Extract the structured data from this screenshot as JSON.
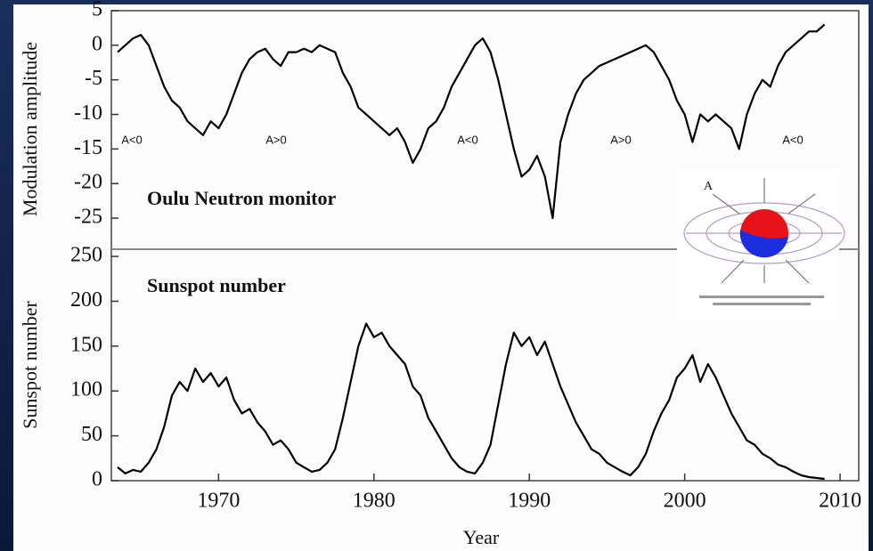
{
  "chart_data": [
    {
      "type": "line",
      "title": "Oulu Neutron monitor",
      "y_label": "Modulation amplitude",
      "color": "#000000",
      "annotations": [
        "A<0",
        "A>0",
        "A<0",
        "A>0",
        "A<0"
      ],
      "xlim": [
        1963.1,
        2011.2
      ],
      "ylim": [
        -29.5,
        5
      ],
      "yticks": [
        5,
        0,
        -5,
        -10,
        -15,
        -20,
        -25
      ],
      "x": [
        1963.5,
        1964,
        1964.5,
        1965,
        1965.5,
        1966,
        1966.5,
        1967,
        1967.5,
        1968,
        1968.5,
        1969,
        1969.5,
        1970,
        1970.5,
        1971,
        1971.5,
        1972,
        1972.5,
        1973,
        1973.5,
        1974,
        1974.5,
        1975,
        1975.5,
        1976,
        1976.5,
        1977,
        1977.5,
        1978,
        1978.5,
        1979,
        1979.5,
        1980,
        1980.5,
        1981,
        1981.5,
        1982,
        1982.5,
        1983,
        1983.5,
        1984,
        1984.5,
        1985,
        1985.5,
        1986,
        1986.5,
        1987,
        1987.5,
        1988,
        1988.5,
        1989,
        1989.5,
        1990,
        1990.5,
        1991,
        1991.5,
        1992,
        1992.5,
        1993,
        1993.5,
        1994,
        1994.5,
        1995,
        1995.5,
        1996,
        1996.5,
        1997,
        1997.5,
        1998,
        1998.5,
        1999,
        1999.5,
        2000,
        2000.5,
        2001,
        2001.5,
        2002,
        2002.5,
        2003,
        2003.5,
        2004,
        2004.5,
        2005,
        2005.5,
        2006,
        2006.5,
        2007,
        2007.5,
        2008,
        2008.5,
        2009
      ],
      "values": [
        -1,
        0,
        1,
        1.5,
        0,
        -3,
        -6,
        -8,
        -9,
        -11,
        -12,
        -13,
        -11,
        -12,
        -10,
        -7,
        -4,
        -2,
        -1,
        -0.5,
        -2,
        -3,
        -1,
        -1,
        -0.5,
        -1,
        0,
        -0.5,
        -1,
        -4,
        -6,
        -9,
        -10,
        -11,
        -12,
        -13,
        -12,
        -14,
        -17,
        -15,
        -12,
        -11,
        -9,
        -6,
        -4,
        -2,
        0,
        1,
        -1,
        -5,
        -10,
        -15,
        -19,
        -18,
        -16,
        -19,
        -25,
        -14,
        -10,
        -7,
        -5,
        -4,
        -3,
        -2.5,
        -2,
        -1.5,
        -1,
        -0.5,
        0,
        -1,
        -3,
        -5,
        -8,
        -10,
        -14,
        -10,
        -11,
        -10,
        -11,
        -12,
        -15,
        -10,
        -7,
        -5,
        -6,
        -3,
        -1,
        0,
        1,
        2,
        2,
        3
      ]
    },
    {
      "type": "line",
      "title": "Sunspot number",
      "y_label": "Sunspot number",
      "x_label": "Year",
      "color": "#000000",
      "xlim": [
        1963.1,
        2011.2
      ],
      "ylim": [
        0,
        258
      ],
      "yticks": [
        0,
        50,
        100,
        150,
        200,
        250
      ],
      "xticks": [
        1970,
        1980,
        1990,
        2000,
        2010
      ],
      "x": [
        1963.5,
        1964,
        1964.5,
        1965,
        1965.5,
        1966,
        1966.5,
        1967,
        1967.5,
        1968,
        1968.5,
        1969,
        1969.5,
        1970,
        1970.5,
        1971,
        1971.5,
        1972,
        1972.5,
        1973,
        1973.5,
        1974,
        1974.5,
        1975,
        1975.5,
        1976,
        1976.5,
        1977,
        1977.5,
        1978,
        1978.5,
        1979,
        1979.5,
        1980,
        1980.5,
        1981,
        1981.5,
        1982,
        1982.5,
        1983,
        1983.5,
        1984,
        1984.5,
        1985,
        1985.5,
        1986,
        1986.5,
        1987,
        1987.5,
        1988,
        1988.5,
        1989,
        1989.5,
        1990,
        1990.5,
        1991,
        1991.5,
        1992,
        1992.5,
        1993,
        1993.5,
        1994,
        1994.5,
        1995,
        1995.5,
        1996,
        1996.5,
        1997,
        1997.5,
        1998,
        1998.5,
        1999,
        1999.5,
        2000,
        2000.5,
        2001,
        2001.5,
        2002,
        2002.5,
        2003,
        2003.5,
        2004,
        2004.5,
        2005,
        2005.5,
        2006,
        2006.5,
        2007,
        2007.5,
        2008,
        2008.5,
        2009
      ],
      "values": [
        15,
        8,
        12,
        10,
        20,
        35,
        60,
        95,
        110,
        100,
        125,
        110,
        120,
        105,
        115,
        90,
        75,
        80,
        65,
        55,
        40,
        45,
        35,
        20,
        15,
        10,
        12,
        20,
        35,
        70,
        110,
        150,
        175,
        160,
        165,
        150,
        140,
        130,
        105,
        95,
        70,
        55,
        40,
        25,
        15,
        10,
        8,
        20,
        40,
        85,
        130,
        165,
        150,
        160,
        140,
        155,
        130,
        105,
        85,
        65,
        50,
        35,
        30,
        20,
        15,
        10,
        6,
        15,
        30,
        55,
        75,
        90,
        115,
        125,
        140,
        110,
        130,
        115,
        95,
        75,
        60,
        45,
        40,
        30,
        25,
        18,
        15,
        10,
        6,
        4,
        3,
        2
      ]
    }
  ]
}
